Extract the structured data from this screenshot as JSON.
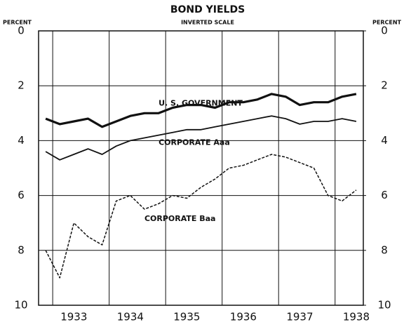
{
  "chart_data": {
    "type": "line",
    "title": "BOND YIELDS",
    "subtitle": "INVERTED SCALE",
    "ylabel": "PERCENT",
    "y2label": "PERCENT",
    "categories": [
      null,
      null,
      "1933",
      null,
      null,
      null,
      "1934",
      null,
      null,
      null,
      "1935",
      null,
      null,
      null,
      "1936",
      null,
      null,
      null,
      "1937",
      null,
      null,
      null,
      "1938"
    ],
    "series": [
      {
        "name": "U. S. GOVERNMENT",
        "color": "#111111",
        "style": "thick",
        "values": [
          3.2,
          3.4,
          3.3,
          3.2,
          3.5,
          3.3,
          3.1,
          3.0,
          3.0,
          2.8,
          2.7,
          2.7,
          2.8,
          2.6,
          2.6,
          2.5,
          2.3,
          2.4,
          2.7,
          2.6,
          2.6,
          2.4,
          2.3
        ]
      },
      {
        "name": "CORPORATE Aaa",
        "color": "#111111",
        "style": "solid",
        "values": [
          4.4,
          4.7,
          4.5,
          4.3,
          4.5,
          4.2,
          4.0,
          3.9,
          3.8,
          3.7,
          3.6,
          3.6,
          3.5,
          3.4,
          3.3,
          3.2,
          3.1,
          3.2,
          3.4,
          3.3,
          3.3,
          3.2,
          3.3
        ]
      },
      {
        "name": "CORPORATE Baa",
        "color": "#111111",
        "style": "dashed",
        "values": [
          8.0,
          9.0,
          7.0,
          7.5,
          7.8,
          6.2,
          6.0,
          6.5,
          6.3,
          6.0,
          6.1,
          5.7,
          5.4,
          5.0,
          4.9,
          4.7,
          4.5,
          4.6,
          4.8,
          5.0,
          6.0,
          6.2,
          5.8
        ]
      }
    ],
    "ylim": [
      0,
      10
    ],
    "yticks": [
      0,
      2,
      4,
      6,
      8,
      10
    ],
    "y2lim": [
      0,
      10
    ],
    "y2ticks": [
      0,
      2,
      4,
      6,
      8,
      10
    ],
    "inverted": true,
    "grid": true
  }
}
